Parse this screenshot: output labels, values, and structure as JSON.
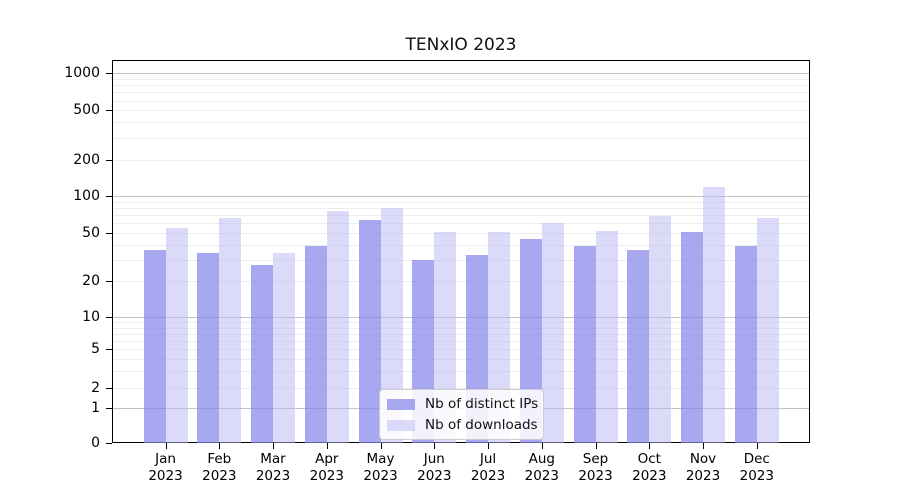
{
  "chart_data": {
    "type": "bar",
    "title": "TENxIO 2023",
    "y_scale": "symlog",
    "grid": true,
    "ylim": [
      0,
      1300
    ],
    "y_ticks": [
      0,
      1,
      2,
      5,
      10,
      20,
      50,
      100,
      200,
      500,
      1000
    ],
    "categories": [
      "Jan",
      "Feb",
      "Mar",
      "Apr",
      "May",
      "Jun",
      "Jul",
      "Aug",
      "Sep",
      "Oct",
      "Nov",
      "Dec"
    ],
    "x_tick_year": "2023",
    "series": [
      {
        "name": "Nb of distinct IPs",
        "color": "rgba(135,135,234,0.72)",
        "values": [
          36,
          34,
          27,
          39,
          64,
          30,
          33,
          44,
          39,
          36,
          51,
          39
        ]
      },
      {
        "name": "Nb of downloads",
        "color": "rgba(183,183,243,0.5)",
        "values": [
          55,
          66,
          34,
          75,
          80,
          51,
          51,
          60,
          52,
          69,
          120,
          66
        ]
      }
    ],
    "legend": {
      "position": "lower center"
    }
  }
}
